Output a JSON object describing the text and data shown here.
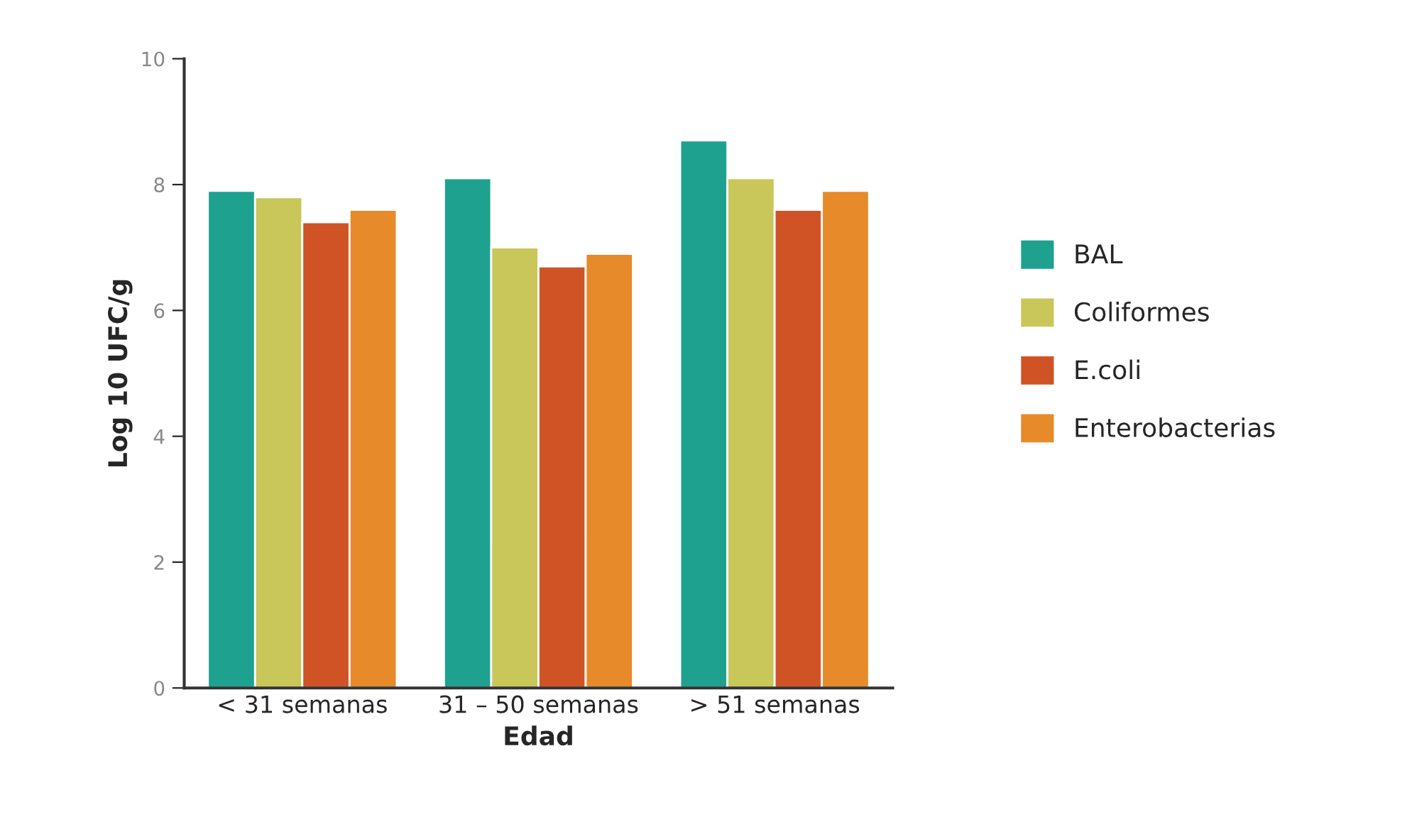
{
  "chart_data": {
    "type": "bar",
    "xlabel": "Edad",
    "ylabel": "Log 10 UFC/g",
    "categories": [
      "< 31 semanas",
      "31 – 50 semanas",
      "> 51 semanas"
    ],
    "series": [
      {
        "name": "BAL",
        "color": "#1fa18f",
        "values": [
          7.9,
          8.1,
          8.7
        ]
      },
      {
        "name": "Coliformes",
        "color": "#c9c65a",
        "values": [
          7.8,
          7.0,
          8.1
        ]
      },
      {
        "name": "E.coli",
        "color": "#d05326",
        "values": [
          7.4,
          6.7,
          7.6
        ]
      },
      {
        "name": "Enterobacterias",
        "color": "#e68a2a",
        "values": [
          7.6,
          6.9,
          7.9
        ]
      }
    ],
    "ylim": [
      0,
      10
    ],
    "yticks": [
      0,
      2,
      4,
      6,
      8,
      10
    ],
    "grid": false,
    "legend": "right"
  }
}
